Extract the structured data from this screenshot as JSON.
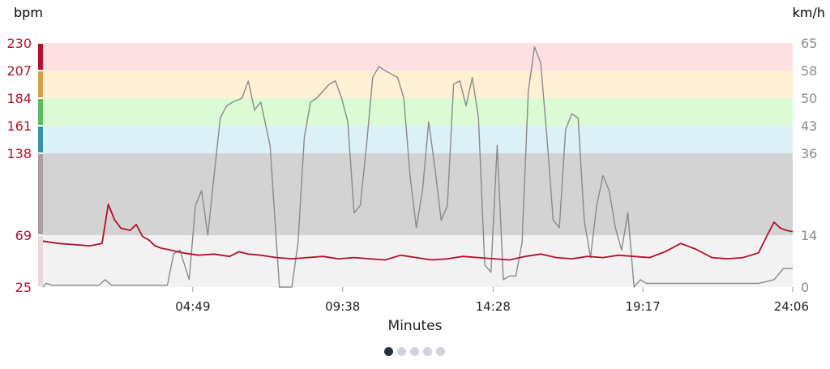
{
  "chart_data": {
    "type": "line",
    "xlabel": "Minutes",
    "x_ticks": [
      {
        "label": "04:49",
        "min": 4.817
      },
      {
        "label": "09:38",
        "min": 9.633
      },
      {
        "label": "14:28",
        "min": 14.467
      },
      {
        "label": "19:17",
        "min": 19.283
      },
      {
        "label": "24:06",
        "min": 24.1
      }
    ],
    "xlim": [
      0,
      24.1
    ],
    "left_axis": {
      "unit": "bpm",
      "ticks": [
        25,
        69,
        138,
        161,
        184,
        207,
        230
      ],
      "color": "#b3112c"
    },
    "right_axis": {
      "unit": "km/h",
      "ticks": [
        0,
        14,
        36,
        43,
        50,
        58,
        65
      ],
      "color": "#8a8a8a"
    },
    "zones": [
      {
        "from": 25,
        "to": 69,
        "color": "#f2f2f2",
        "bar": "#ecd8dc"
      },
      {
        "from": 69,
        "to": 138,
        "color": "#d3d3d3",
        "bar": "#a99ea3"
      },
      {
        "from": 138,
        "to": 161,
        "color": "#dcf0f8",
        "bar": "#3c92a8"
      },
      {
        "from": 161,
        "to": 184,
        "color": "#dcfad4",
        "bar": "#5eba5e"
      },
      {
        "from": 184,
        "to": 207,
        "color": "#fdf0d5",
        "bar": "#d4a24a"
      },
      {
        "from": 207,
        "to": 230,
        "color": "#fde0e4",
        "bar": "#b3112c"
      }
    ],
    "series": [
      {
        "axis": "left",
        "color": "#b3112c",
        "x": [
          0,
          0.5,
          1.0,
          1.5,
          1.9,
          2.1,
          2.3,
          2.5,
          2.8,
          3.0,
          3.2,
          3.4,
          3.6,
          3.8,
          4.0,
          4.5,
          5.0,
          5.5,
          6.0,
          6.3,
          6.6,
          7.0,
          7.5,
          8.0,
          8.5,
          9.0,
          9.5,
          10.0,
          10.5,
          11.0,
          11.5,
          12.0,
          12.5,
          13.0,
          13.5,
          14.0,
          14.5,
          15.0,
          15.5,
          16.0,
          16.5,
          17.0,
          17.5,
          18.0,
          18.5,
          19.0,
          19.5,
          20.0,
          20.5,
          21.0,
          21.5,
          22.0,
          22.5,
          23.0,
          23.3,
          23.5,
          23.7,
          23.9,
          24.1
        ],
        "y": [
          64,
          62,
          61,
          60,
          62,
          95,
          82,
          75,
          73,
          78,
          68,
          65,
          60,
          58,
          57,
          54,
          52,
          53,
          51,
          55,
          53,
          52,
          50,
          49,
          50,
          51,
          49,
          50,
          49,
          48,
          52,
          50,
          48,
          49,
          51,
          50,
          49,
          48,
          51,
          53,
          50,
          49,
          51,
          50,
          52,
          51,
          50,
          55,
          62,
          57,
          50,
          49,
          50,
          54,
          70,
          80,
          75,
          73,
          72
        ]
      },
      {
        "axis": "right",
        "color": "#8a8a8a",
        "x": [
          0,
          0.1,
          0.3,
          1.8,
          2.0,
          2.2,
          4.0,
          4.2,
          4.4,
          4.7,
          4.9,
          5.1,
          5.3,
          5.5,
          5.7,
          5.9,
          6.1,
          6.4,
          6.6,
          6.8,
          7.0,
          7.3,
          7.6,
          7.8,
          8.0,
          8.2,
          8.4,
          8.6,
          8.8,
          9.0,
          9.2,
          9.4,
          9.6,
          9.8,
          10.0,
          10.2,
          10.4,
          10.6,
          10.8,
          11.0,
          11.2,
          11.4,
          11.6,
          11.8,
          12.0,
          12.2,
          12.4,
          12.6,
          12.8,
          13.0,
          13.2,
          13.4,
          13.6,
          13.8,
          14.0,
          14.2,
          14.4,
          14.6,
          14.8,
          15.0,
          15.2,
          15.4,
          15.6,
          15.8,
          16.0,
          16.2,
          16.4,
          16.6,
          16.8,
          17.0,
          17.2,
          17.4,
          17.6,
          17.8,
          18.0,
          18.2,
          18.4,
          18.6,
          18.8,
          19.0,
          19.2,
          19.4,
          19.6,
          19.8,
          20.0,
          20.2,
          20.4,
          20.6,
          20.8,
          21.0,
          21.5,
          22.0,
          22.5,
          23.0,
          23.5,
          23.8,
          23.9,
          24.1
        ],
        "y": [
          0,
          1,
          0.5,
          0.5,
          2,
          0.5,
          0.5,
          9,
          10,
          2,
          22,
          26,
          14,
          30,
          45,
          48,
          49,
          50,
          55,
          47,
          49,
          38,
          0,
          0,
          0,
          12,
          40,
          49,
          50,
          52,
          54,
          55,
          50,
          44,
          20,
          22,
          38,
          56,
          59,
          58,
          57,
          56,
          50,
          30,
          16,
          26,
          44,
          32,
          18,
          22,
          54,
          55,
          48,
          56,
          45,
          6,
          4,
          38,
          2,
          3,
          3,
          12,
          52,
          64,
          60,
          40,
          18,
          16,
          42,
          46,
          45,
          18,
          8,
          22,
          30,
          26,
          16,
          10,
          20,
          0,
          2,
          1,
          1,
          1,
          1,
          1,
          1,
          1,
          1,
          1,
          1,
          1,
          1,
          1,
          2,
          5,
          5,
          5
        ]
      }
    ],
    "pager": {
      "pages": 5,
      "active": 0
    }
  }
}
